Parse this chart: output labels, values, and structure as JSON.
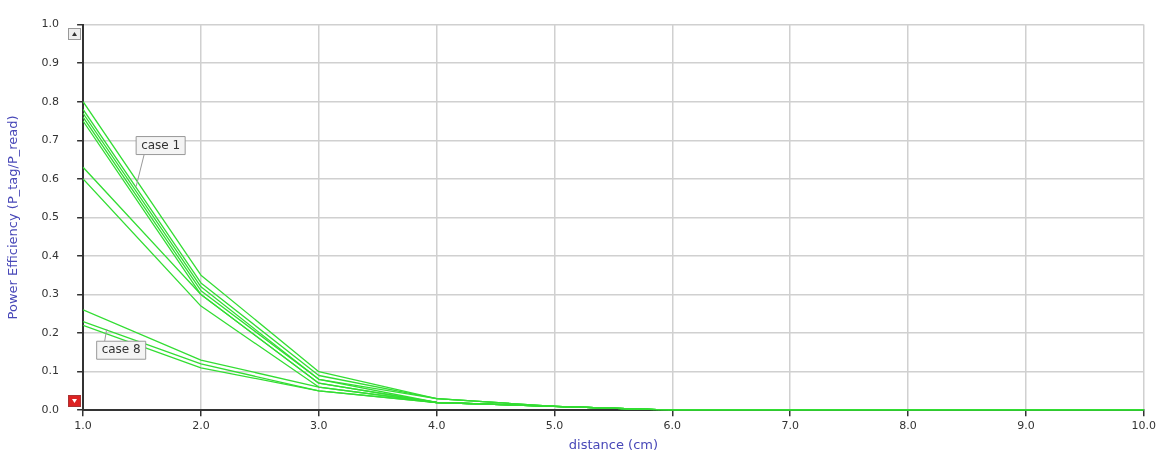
{
  "chart_data": {
    "type": "line",
    "xlabel": "distance (cm)",
    "ylabel": "Power Efficiency (P_tag/P_read)",
    "x": [
      1,
      2,
      3,
      4,
      5,
      6,
      7,
      8,
      9,
      10
    ],
    "series": [
      {
        "color": "#33dd33",
        "values": [
          0.8,
          0.35,
          0.1,
          0.03,
          0.01,
          0.0,
          0.0,
          0.0,
          0.0,
          0.0
        ]
      },
      {
        "color": "#33dd33",
        "values": [
          0.78,
          0.33,
          0.09,
          0.03,
          0.01,
          0.0,
          0.0,
          0.0,
          0.0,
          0.0
        ]
      },
      {
        "color": "#33dd33",
        "values": [
          0.77,
          0.32,
          0.08,
          0.03,
          0.01,
          0.0,
          0.0,
          0.0,
          0.0,
          0.0
        ]
      },
      {
        "color": "#33dd33",
        "values": [
          0.76,
          0.31,
          0.08,
          0.02,
          0.01,
          0.0,
          0.0,
          0.0,
          0.0,
          0.0
        ]
      },
      {
        "color": "#33dd33",
        "values": [
          0.75,
          0.3,
          0.07,
          0.02,
          0.01,
          0.0,
          0.0,
          0.0,
          0.0,
          0.0
        ]
      },
      {
        "color": "#33dd33",
        "values": [
          0.63,
          0.3,
          0.07,
          0.02,
          0.01,
          0.0,
          0.0,
          0.0,
          0.0,
          0.0
        ]
      },
      {
        "color": "#33dd33",
        "values": [
          0.6,
          0.27,
          0.06,
          0.02,
          0.01,
          0.0,
          0.0,
          0.0,
          0.0,
          0.0
        ]
      },
      {
        "color": "#33dd33",
        "values": [
          0.26,
          0.13,
          0.06,
          0.02,
          0.01,
          0.0,
          0.0,
          0.0,
          0.0,
          0.0
        ]
      },
      {
        "color": "#33dd33",
        "values": [
          0.23,
          0.12,
          0.05,
          0.02,
          0.01,
          0.0,
          0.0,
          0.0,
          0.0,
          0.0
        ]
      },
      {
        "color": "#33dd33",
        "values": [
          0.22,
          0.11,
          0.05,
          0.02,
          0.01,
          0.0,
          0.0,
          0.0,
          0.0,
          0.0
        ]
      }
    ],
    "xlim": [
      1,
      10
    ],
    "xticks": [
      {
        "value": 1,
        "label": "1.0"
      },
      {
        "value": 2,
        "label": "2.0"
      },
      {
        "value": 3,
        "label": "3.0"
      },
      {
        "value": 4,
        "label": "4.0"
      },
      {
        "value": 5,
        "label": "5.0"
      },
      {
        "value": 6,
        "label": "6.0"
      },
      {
        "value": 7,
        "label": "7.0"
      },
      {
        "value": 8,
        "label": "8.0"
      },
      {
        "value": 9,
        "label": "9.0"
      },
      {
        "value": 10,
        "label": "10.0"
      }
    ],
    "ylim": [
      0,
      1
    ],
    "yticks": [
      {
        "value": 0,
        "label": "0.0"
      },
      0.1,
      0.2,
      0.3,
      0.4,
      0.5,
      0.6,
      0.7,
      0.8,
      0.9,
      {
        "value": 1,
        "label": "1.0"
      }
    ],
    "annotations": [
      {
        "text": "case 1",
        "x": 1.45,
        "y": 0.58
      },
      {
        "text": "case 8",
        "x": 1.2,
        "y": 0.21
      }
    ],
    "grid": true,
    "legend": false,
    "marker": "none",
    "line_style": "solid"
  }
}
